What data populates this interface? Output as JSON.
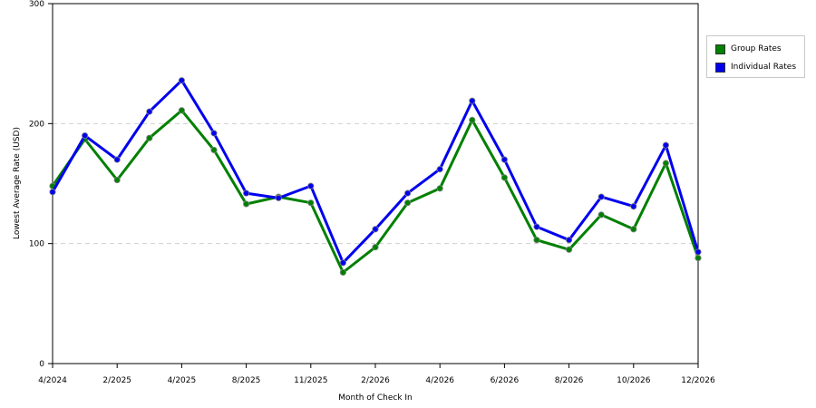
{
  "chart_data": {
    "type": "line",
    "xlabel": "Month of Check In",
    "ylabel": "Lowest Average Rate (USD)",
    "ylim": [
      0,
      300
    ],
    "yticks": [
      0,
      100,
      200,
      300
    ],
    "xticks": [
      "4/2024",
      "2/2025",
      "4/2025",
      "8/2025",
      "11/2025",
      "2/2026",
      "4/2026",
      "6/2026",
      "8/2026",
      "10/2026",
      "12/2026"
    ],
    "grid": "horizontal dashed",
    "legend_position": "right",
    "series": [
      {
        "name": "Group Rates",
        "color": "#008000",
        "values": [
          148,
          187,
          153,
          188,
          211,
          178,
          133,
          139,
          134,
          76,
          97,
          134,
          146,
          203,
          155,
          103,
          95,
          124,
          112,
          167,
          88
        ]
      },
      {
        "name": "Individual Rates",
        "color": "#0000ee",
        "values": [
          143,
          190,
          170,
          210,
          236,
          192,
          142,
          138,
          148,
          84,
          112,
          142,
          162,
          219,
          170,
          114,
          103,
          139,
          131,
          182,
          93
        ]
      }
    ]
  }
}
